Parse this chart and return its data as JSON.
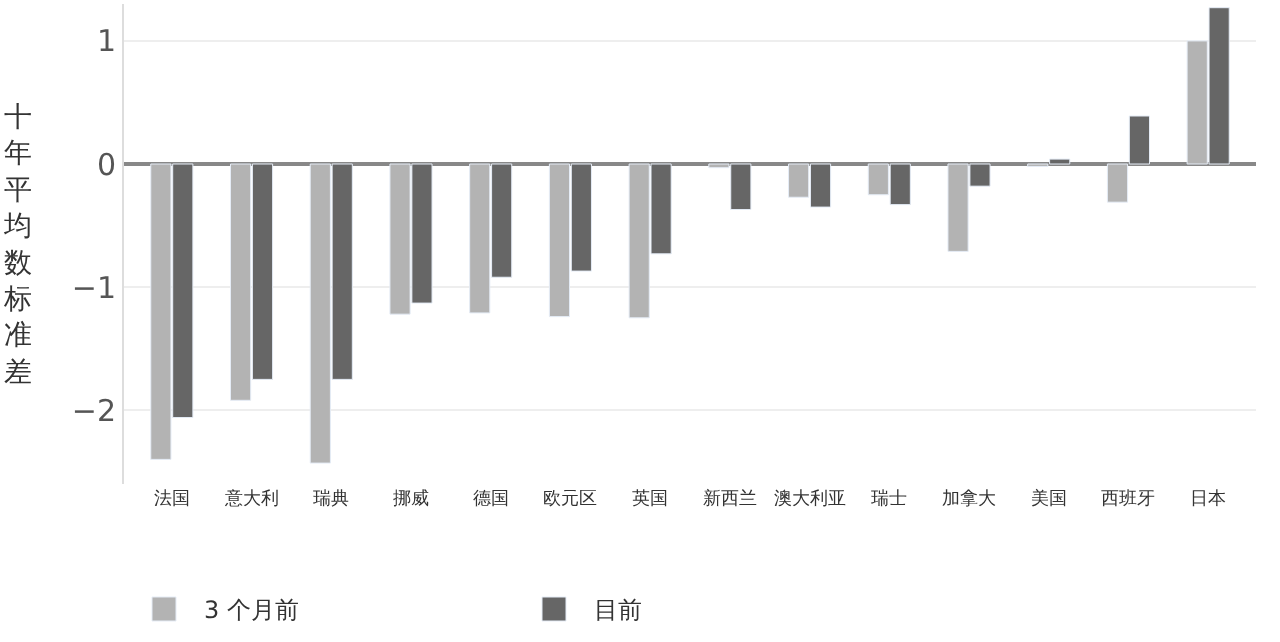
{
  "chart_data": {
    "type": "bar",
    "ylabel": "十年平均数标准差",
    "categories": [
      "法国",
      "意大利",
      "瑞典",
      "挪威",
      "德国",
      "欧元区",
      "英国",
      "新西兰",
      "澳大利亚",
      "瑞士",
      "加拿大",
      "美国",
      "西班牙",
      "日本"
    ],
    "series": [
      {
        "name": "3 个月前",
        "color": "#b3b3b3",
        "values": [
          -2.4,
          -1.92,
          -2.43,
          -1.22,
          -1.21,
          -1.24,
          -1.25,
          -0.03,
          -0.27,
          -0.25,
          -0.71,
          -0.02,
          -0.31,
          1.0
        ]
      },
      {
        "name": "目前",
        "color": "#666666",
        "values": [
          -2.06,
          -1.75,
          -1.75,
          -1.13,
          -0.92,
          -0.87,
          -0.73,
          -0.37,
          -0.35,
          -0.33,
          -0.18,
          0.04,
          0.39,
          1.27
        ]
      }
    ],
    "ylim": [
      -2.6,
      1.3
    ],
    "yticks": [
      -2,
      -1,
      0,
      1
    ],
    "grid": "y",
    "legend": "bottom left"
  }
}
